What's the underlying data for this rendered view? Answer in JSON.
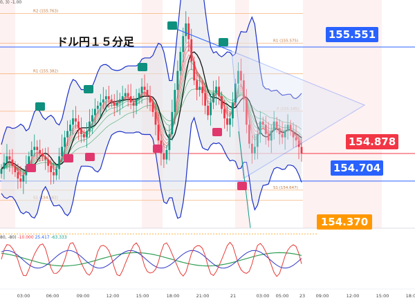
{
  "title": "ドル円１５分足",
  "top_indicator": "0, 3)  -1.00",
  "osc_indicator": {
    "prefix": "80, -80)",
    "v1": "-10.000",
    "v2": "25.417",
    "v3": "-63.333"
  },
  "price_tags": [
    {
      "name": "tag-resistance",
      "text": "155.551",
      "color": "#2962ff"
    },
    {
      "name": "tag-current",
      "text": "154.878",
      "color": "#f23645"
    },
    {
      "name": "tag-support",
      "text": "154.704",
      "color": "#2962ff"
    },
    {
      "name": "tag-target",
      "text": "154.370",
      "color": "#ff9800"
    }
  ],
  "pivot_levels": [
    {
      "label": "R2 (155.763)",
      "value": 155.763
    },
    {
      "label": "R1 (155.575)",
      "value": 155.575
    },
    {
      "label": "R1 (155.382)",
      "value": 155.382
    },
    {
      "label": "P (155.145)",
      "value": 155.145
    },
    {
      "label": "S1 (154.647)",
      "value": 154.647
    },
    {
      "label": "S1 (154.582)",
      "value": 154.582
    }
  ],
  "x_ticks": [
    "03:00",
    "06:00",
    "09:00",
    "12:00",
    "15:00",
    "18:00",
    "21:00",
    "21",
    "03:00",
    "05:00",
    "23",
    "09:00",
    "12:00",
    "15:00",
    "18:00"
  ],
  "colors": {
    "bull": "#089981",
    "bear": "#f23645",
    "band": "#1a2fc9",
    "trend": "#2962ff",
    "pivot": "#f5b27a",
    "zone": "#fde6e6"
  },
  "chart_data": {
    "type": "candlestick",
    "title": "ドル円１５分足",
    "instrument": "USD/JPY",
    "timeframe": "15m",
    "close_series": [
      154.78,
      154.82,
      154.86,
      154.84,
      154.8,
      154.76,
      154.72,
      154.7,
      154.74,
      154.8,
      154.86,
      154.9,
      154.92,
      154.9,
      154.88,
      154.86,
      154.84,
      154.8,
      154.76,
      154.74,
      154.78,
      154.86,
      154.92,
      154.98,
      155.02,
      155.06,
      155.1,
      155.08,
      155.04,
      155.0,
      154.98,
      155.02,
      155.08,
      155.12,
      155.16,
      155.18,
      155.2,
      155.22,
      155.24,
      155.22,
      155.2,
      155.18,
      155.2,
      155.22,
      155.24,
      155.26,
      155.24,
      155.2,
      155.18,
      155.22,
      155.26,
      155.3,
      155.28,
      155.24,
      155.2,
      155.14,
      155.06,
      154.96,
      154.88,
      154.84,
      154.9,
      155.0,
      155.14,
      155.28,
      155.4,
      155.52,
      155.62,
      155.7,
      155.6,
      155.46,
      155.34,
      155.28,
      155.3,
      155.26,
      155.18,
      155.12,
      155.2,
      155.26,
      155.3,
      155.24,
      155.16,
      155.1,
      155.06,
      155.1,
      155.2,
      155.32,
      155.4,
      155.34,
      155.22,
      155.06,
      154.94,
      154.88,
      154.92,
      155.0,
      155.08,
      155.06,
      155.0,
      154.96,
      155.02,
      155.08,
      155.04,
      155.0,
      154.98,
      155.02,
      155.06,
      155.02,
      154.98,
      154.96,
      154.92,
      154.88
    ],
    "pivots": {
      "R2": 155.763,
      "R1_a": 155.575,
      "R1_b": 155.382,
      "P": 155.145,
      "S1_a": 154.647,
      "S1_b": 154.582
    },
    "levels": {
      "resistance": 155.551,
      "current": 154.878,
      "support": 154.704,
      "target": 154.37
    },
    "oscillator": {
      "v1": -10.0,
      "v2": 25.417,
      "v3": -63.333,
      "range": [
        -80,
        80
      ]
    }
  }
}
